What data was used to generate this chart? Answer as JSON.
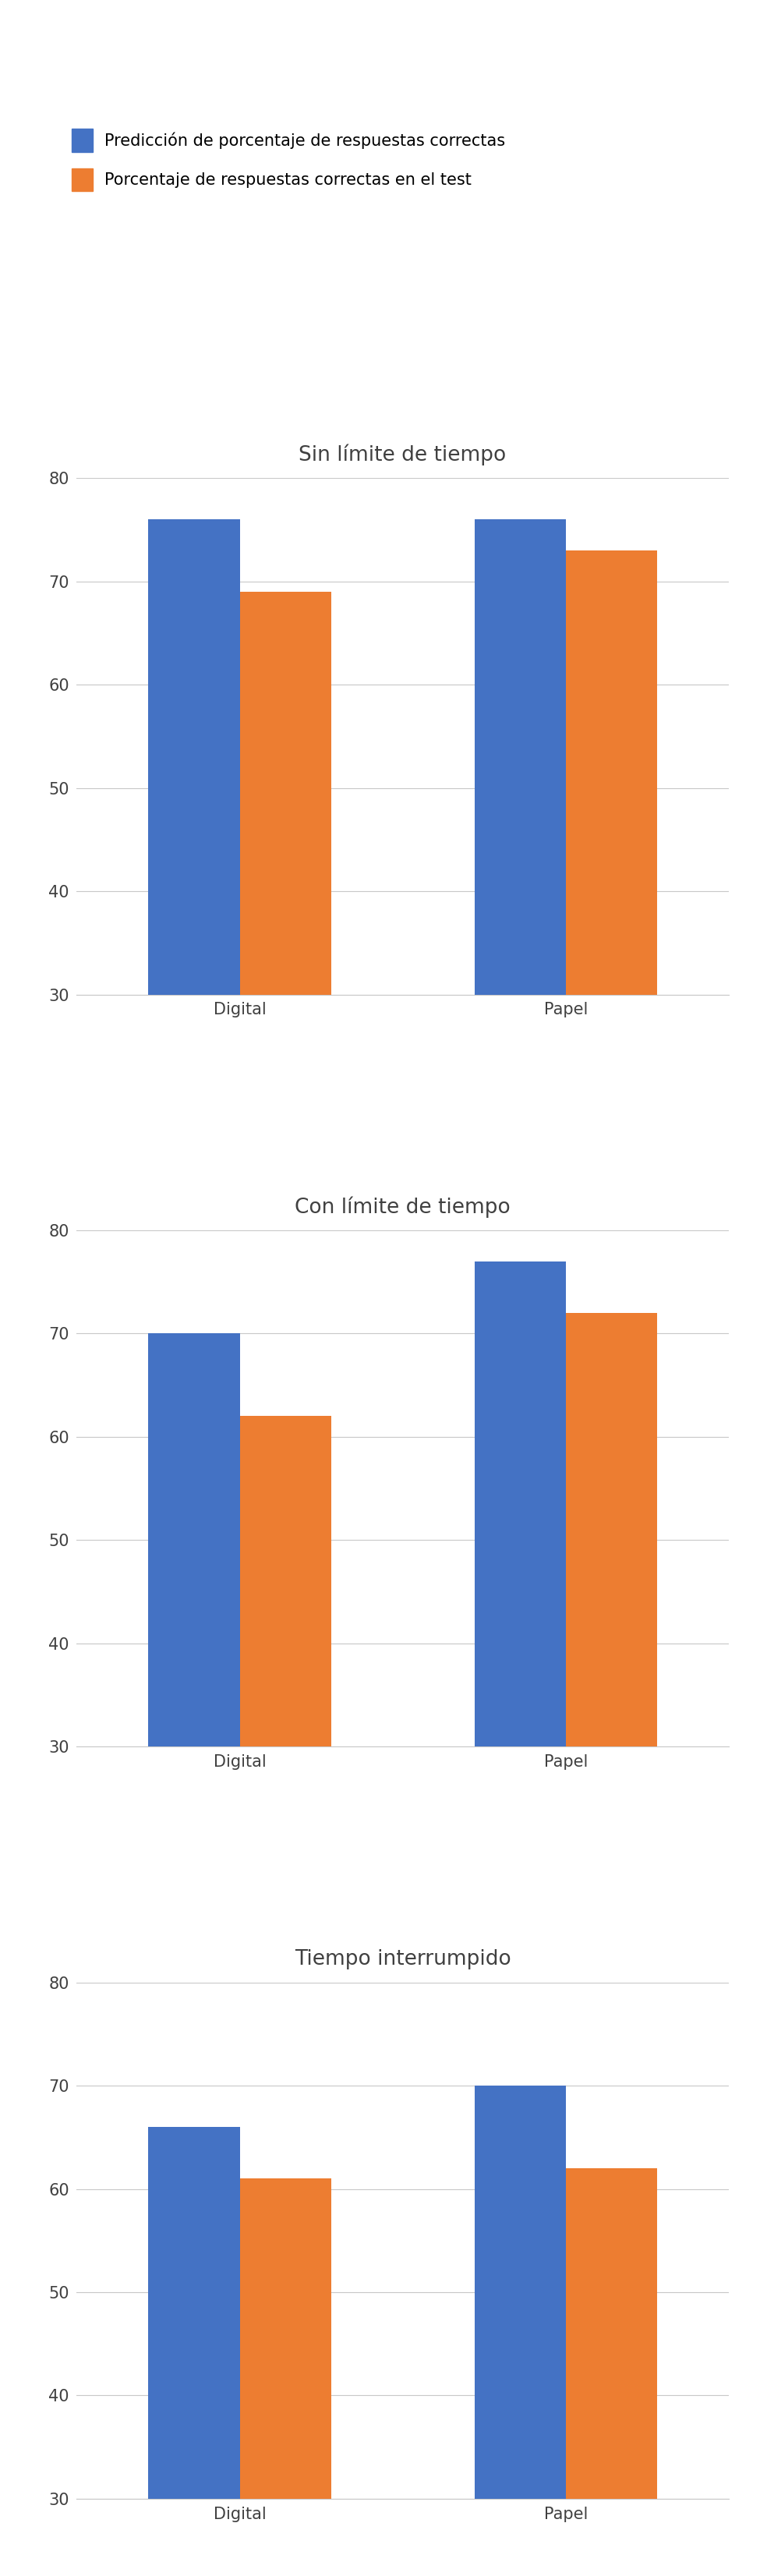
{
  "legend": [
    {
      "label": "Predicción de porcentaje de respuestas correctas",
      "color": "#4472C4"
    },
    {
      "label": "Porcentaje de respuestas correctas en el test",
      "color": "#ED7D31"
    }
  ],
  "charts": [
    {
      "title": "Sin límite de tiempo",
      "categories": [
        "Digital",
        "Papel"
      ],
      "blue_values": [
        76,
        76
      ],
      "orange_values": [
        69,
        73
      ],
      "ylim": [
        30,
        80
      ],
      "yticks": [
        30,
        40,
        50,
        60,
        70,
        80
      ]
    },
    {
      "title": "Con límite de tiempo",
      "categories": [
        "Digital",
        "Papel"
      ],
      "blue_values": [
        70,
        77
      ],
      "orange_values": [
        62,
        72
      ],
      "ylim": [
        30,
        80
      ],
      "yticks": [
        30,
        40,
        50,
        60,
        70,
        80
      ]
    },
    {
      "title": "Tiempo interrumpido",
      "categories": [
        "Digital",
        "Papel"
      ],
      "blue_values": [
        66,
        70
      ],
      "orange_values": [
        61,
        62
      ],
      "ylim": [
        30,
        80
      ],
      "yticks": [
        30,
        40,
        50,
        60,
        70,
        80
      ]
    }
  ],
  "blue_color": "#4472C4",
  "orange_color": "#ED7D31",
  "background_color": "#FFFFFF",
  "grid_color": "#C8C8C8",
  "title_fontsize": 19,
  "tick_fontsize": 15,
  "legend_fontsize": 15,
  "bar_width": 0.28,
  "fig_width": 9.84,
  "fig_height": 33.04
}
